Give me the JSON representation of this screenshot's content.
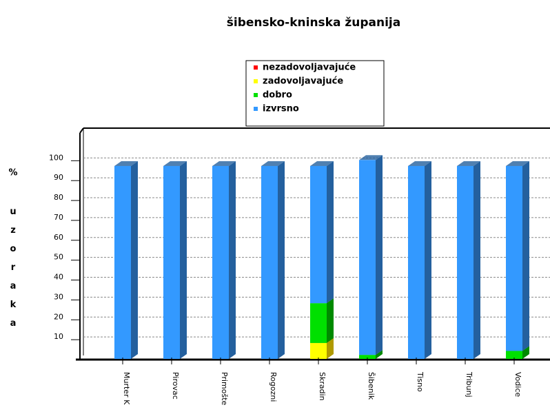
{
  "chart_data": {
    "type": "bar",
    "stacked": true,
    "title": "šibensko-kninska županija",
    "y_label_unit": "%",
    "y_label": "uzoraka",
    "categories": [
      "Murter K",
      "Pirovac",
      "Primošte",
      "Rogozni",
      "Skradin",
      "Šibenik",
      "Tisno",
      "Tribunj",
      "Vodice"
    ],
    "series": [
      {
        "name": "nezadovoljavajuće",
        "color": "#ff0000",
        "side": "#a00000",
        "values": [
          0,
          0,
          0,
          0,
          0,
          0,
          0,
          0,
          0
        ]
      },
      {
        "name": "zadovoljavajuće",
        "color": "#ffff00",
        "side": "#b09a00",
        "values": [
          0,
          0,
          0,
          0,
          8,
          0,
          0,
          0,
          0
        ]
      },
      {
        "name": "dobro",
        "color": "#00e000",
        "side": "#008a00",
        "values": [
          0,
          0,
          0,
          0,
          20,
          2,
          0,
          0,
          4
        ]
      },
      {
        "name": "izvrsno",
        "color": "#3399ff",
        "side": "#24609e",
        "values": [
          97,
          97,
          97,
          97,
          69,
          98,
          97,
          97,
          93
        ]
      }
    ],
    "ylim": [
      0,
      115
    ],
    "yticks": [
      10,
      20,
      30,
      40,
      50,
      60,
      70,
      80,
      90,
      100
    ],
    "grid": true
  }
}
